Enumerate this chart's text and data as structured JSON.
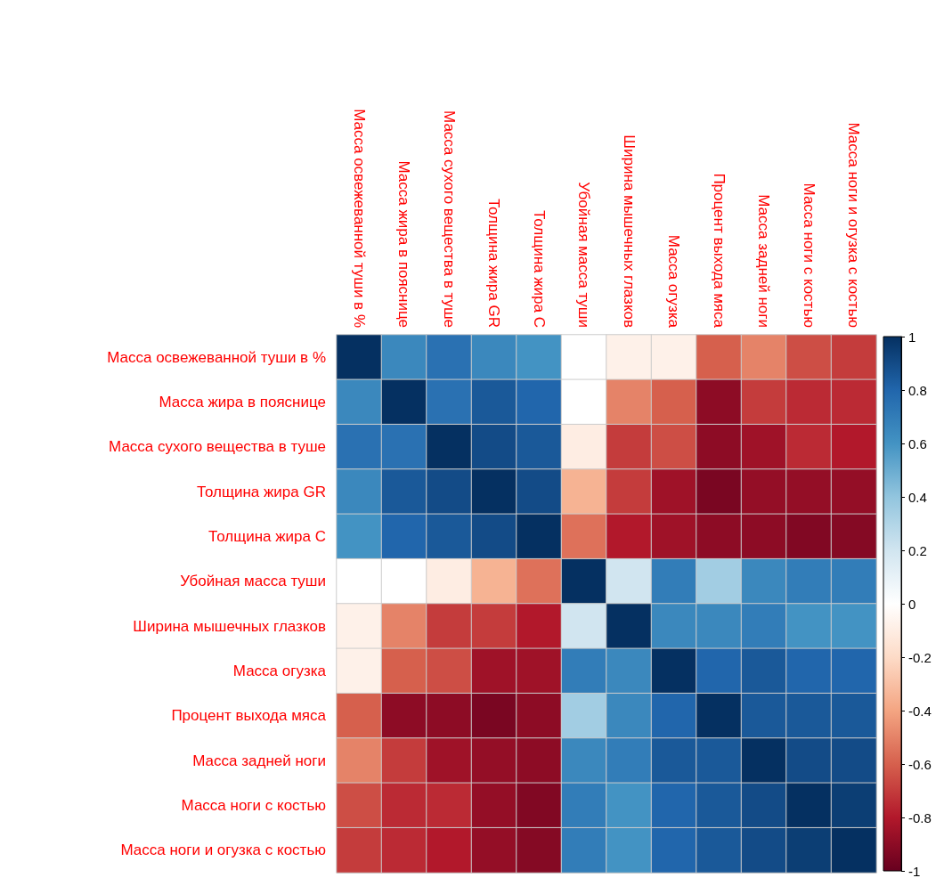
{
  "chart_data": {
    "type": "heatmap",
    "categories": [
      "Масса освежеванной туши в %",
      "Масса жира в пояснице",
      "Масса сухого вещества в туше",
      "Толщина жира GR",
      "Толщина жира C",
      "Убойная масса туши",
      "Ширина мышечных глазков",
      "Масса огузка",
      "Процент выхода мяса",
      "Масса задней ноги",
      "Масса ноги с костью",
      "Масса ноги и огузка с костью"
    ],
    "y_categories": [
      "Масса освежеванной туши в %",
      "Масса жира в пояснице",
      "Масса сухого вещества в туше",
      "Толщина жира GR",
      "Толщина жира C",
      "Убойная масса туши",
      "Ширина мышечных глазков",
      "Масса огузка",
      "Процент выхода мяса",
      "Масса задней ноги",
      "Масса ноги с костью",
      "Масса ноги и огузка с костью"
    ],
    "cells": [
      [
        1,
        0.65,
        0.75,
        0.65,
        0.6,
        0,
        -0.08,
        -0.08,
        -0.6,
        -0.5,
        -0.65,
        -0.7
      ],
      [
        0.65,
        1,
        0.75,
        0.85,
        0.8,
        0,
        -0.5,
        -0.6,
        -0.9,
        -0.7,
        -0.75,
        -0.75
      ],
      [
        0.75,
        0.75,
        1,
        0.9,
        0.85,
        -0.1,
        -0.7,
        -0.65,
        -0.9,
        -0.85,
        -0.75,
        -0.8
      ],
      [
        0.65,
        0.85,
        0.9,
        1,
        0.9,
        -0.35,
        -0.7,
        -0.85,
        -0.95,
        -0.88,
        -0.88,
        -0.88
      ],
      [
        0.6,
        0.8,
        0.85,
        0.9,
        1,
        -0.55,
        -0.8,
        -0.85,
        -0.9,
        -0.9,
        -0.93,
        -0.92
      ],
      [
        0,
        0,
        -0.1,
        -0.35,
        -0.55,
        1,
        0.2,
        0.7,
        0.35,
        0.65,
        0.7,
        0.7
      ],
      [
        -0.08,
        -0.5,
        -0.7,
        -0.7,
        -0.8,
        0.2,
        1,
        0.65,
        0.65,
        0.7,
        0.6,
        0.6
      ],
      [
        -0.08,
        -0.6,
        -0.65,
        -0.85,
        -0.85,
        0.7,
        0.65,
        1,
        0.8,
        0.85,
        0.8,
        0.8
      ],
      [
        -0.6,
        -0.9,
        -0.9,
        -0.95,
        -0.9,
        0.35,
        0.65,
        0.8,
        1,
        0.85,
        0.85,
        0.85
      ],
      [
        -0.5,
        -0.7,
        -0.85,
        -0.88,
        -0.9,
        0.65,
        0.7,
        0.85,
        0.85,
        1,
        0.9,
        0.9
      ],
      [
        -0.65,
        -0.75,
        -0.75,
        -0.88,
        -0.93,
        0.7,
        0.6,
        0.8,
        0.85,
        0.9,
        1,
        0.95
      ],
      [
        -0.7,
        -0.75,
        -0.8,
        -0.88,
        -0.92,
        0.7,
        0.6,
        0.8,
        0.85,
        0.9,
        0.95,
        1
      ]
    ],
    "clim": [
      -1,
      1
    ],
    "cticks": [
      -1,
      -0.8,
      -0.6,
      -0.4,
      -0.2,
      0,
      0.2,
      0.4,
      0.6,
      0.8,
      1
    ]
  }
}
